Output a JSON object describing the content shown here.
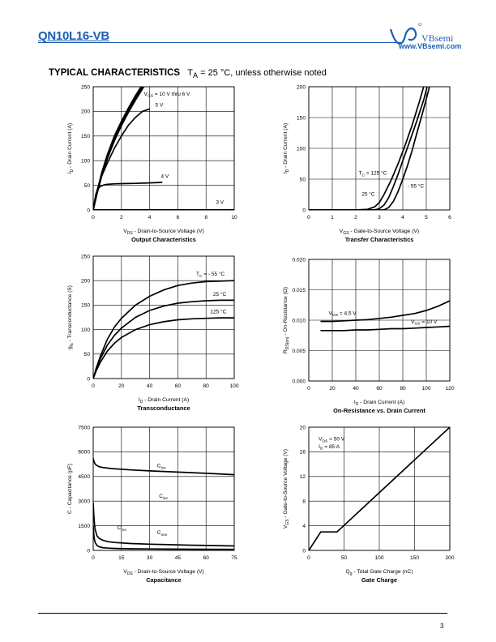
{
  "header": {
    "part_number": "QN10L16-VB",
    "logo_name": "VBsemi",
    "logo_url": "www.VBsemi.com",
    "section_title": "TYPICAL CHARACTERISTICS",
    "section_note_pre": "T",
    "section_note_sub": "A",
    "section_note_post": " = 25 °C, unless otherwise noted"
  },
  "footer": {
    "page_number": "3"
  },
  "colors": {
    "brand": "#1a5fb4",
    "curve": "#000000"
  },
  "chart_data": [
    {
      "id": "output",
      "type": "line",
      "title": "Output Characteristics",
      "xlabel": {
        "pre": "V",
        "sub": "DS",
        "post": " - Drain-to-Source Voltage (V)"
      },
      "ylabel": {
        "pre": "I",
        "sub": "D",
        "post": " - Drain Current (A)"
      },
      "xlim": [
        0,
        10
      ],
      "ylim": [
        0,
        250
      ],
      "xticks": [
        0,
        2,
        4,
        6,
        8,
        10
      ],
      "yticks": [
        0,
        50,
        100,
        150,
        200,
        250
      ],
      "ytick_labels": [
        "0",
        "50",
        "100",
        "150",
        "200",
        "250"
      ],
      "grid": true,
      "series": [
        {
          "x": [
            0,
            0.3,
            0.6,
            1,
            1.5,
            2,
            2.5,
            3,
            3.5,
            4
          ],
          "y": [
            0,
            40,
            75,
            112,
            150,
            180,
            207,
            232,
            255,
            280
          ]
        },
        {
          "x": [
            0,
            0.3,
            0.6,
            1,
            1.5,
            2,
            2.5,
            3,
            3.5,
            4
          ],
          "y": [
            0,
            38,
            72,
            108,
            145,
            176,
            202,
            228,
            250,
            275
          ]
        },
        {
          "x": [
            0,
            0.3,
            0.6,
            1,
            1.5,
            2,
            2.5,
            3,
            3.5,
            4
          ],
          "y": [
            0,
            36,
            68,
            104,
            140,
            171,
            198,
            223,
            246,
            270
          ]
        },
        {
          "x": [
            0,
            0.2,
            0.5,
            1,
            1.5,
            2,
            2.5,
            3,
            3.5,
            4
          ],
          "y": [
            0,
            32,
            62,
            95,
            125,
            150,
            172,
            188,
            200,
            205
          ]
        },
        {
          "x": [
            0,
            0.1,
            0.2,
            0.35,
            0.5,
            0.8,
            1,
            1.5,
            2,
            3,
            4,
            4.9
          ],
          "y": [
            0,
            18,
            33,
            43,
            48,
            51,
            52,
            53,
            53.5,
            54,
            55,
            56
          ]
        },
        {
          "x": [
            0,
            10
          ],
          "y": [
            0.3,
            0.3
          ]
        }
      ],
      "annotations": [
        {
          "x": 3.6,
          "y": 232,
          "pre": "V",
          "sub": "GS",
          "post": " = 10 V thru 6 V"
        },
        {
          "x": 4.4,
          "y": 210,
          "pre": "5 V"
        },
        {
          "x": 4.8,
          "y": 65,
          "pre": "4 V"
        },
        {
          "x": 8.7,
          "y": 12,
          "pre": "3 V"
        }
      ]
    },
    {
      "id": "transfer",
      "type": "line",
      "title": "Transfer Characteristics",
      "xlabel": {
        "pre": "V",
        "sub": "GS",
        "post": " - Gate-to-Source Voltage (V)"
      },
      "ylabel": {
        "pre": "I",
        "sub": "D",
        "post": " - Drain Current (A)"
      },
      "xlim": [
        0,
        6
      ],
      "ylim": [
        0,
        200
      ],
      "xticks": [
        0,
        1,
        2,
        3,
        4,
        5,
        6
      ],
      "yticks": [
        0,
        50,
        100,
        150,
        200
      ],
      "ytick_labels": [
        "0",
        "50",
        "100",
        "150",
        "200"
      ],
      "grid": true,
      "series": [
        {
          "x": [
            0,
            2.0,
            2.5,
            2.8,
            3.0,
            3.2,
            3.5,
            3.8,
            4.1,
            4.4,
            4.7,
            5.0
          ],
          "y": [
            0,
            0,
            1,
            5,
            12,
            25,
            48,
            75,
            105,
            138,
            175,
            215
          ]
        },
        {
          "x": [
            0,
            2.8,
            3.0,
            3.2,
            3.4,
            3.6,
            3.8,
            4.0,
            4.3,
            4.6,
            4.9,
            5.1
          ],
          "y": [
            0,
            0,
            2,
            8,
            20,
            38,
            58,
            80,
            112,
            145,
            180,
            210
          ]
        },
        {
          "x": [
            0,
            3.2,
            3.4,
            3.6,
            3.8,
            4.0,
            4.2,
            4.4,
            4.6,
            4.8,
            5.0,
            5.2
          ],
          "y": [
            0,
            0,
            4,
            14,
            30,
            50,
            72,
            97,
            125,
            152,
            180,
            210
          ]
        }
      ],
      "annotations": [
        {
          "x": 2.12,
          "y": 57,
          "pre": "T",
          "sub": "C",
          "post": " = 125 °C"
        },
        {
          "x": 2.25,
          "y": 23,
          "pre": "25 °C"
        },
        {
          "x": 4.2,
          "y": 36,
          "pre": "- 55 °C"
        }
      ]
    },
    {
      "id": "transconductance",
      "type": "line",
      "title": "Transconductance",
      "xlabel": {
        "pre": "I",
        "sub": "D",
        "post": " - Drain Current (A)"
      },
      "ylabel": {
        "pre": "g",
        "sub": "fs",
        "post": " - Transconductance (S)"
      },
      "xlim": [
        0,
        100
      ],
      "ylim": [
        0,
        250
      ],
      "xticks": [
        0,
        20,
        40,
        60,
        80,
        100
      ],
      "yticks": [
        0,
        50,
        100,
        150,
        200,
        250
      ],
      "ytick_labels": [
        "0",
        "50",
        "100",
        "150",
        "200",
        "250"
      ],
      "grid": true,
      "series": [
        {
          "x": [
            0,
            2,
            5,
            10,
            15,
            20,
            30,
            40,
            50,
            60,
            70,
            80,
            90,
            100
          ],
          "y": [
            0,
            20,
            45,
            80,
            105,
            123,
            150,
            168,
            181,
            190,
            195,
            198,
            199,
            200
          ]
        },
        {
          "x": [
            0,
            2,
            5,
            10,
            15,
            20,
            30,
            40,
            50,
            60,
            70,
            80,
            90,
            100
          ],
          "y": [
            0,
            18,
            40,
            68,
            88,
            103,
            125,
            139,
            148,
            154,
            157,
            159,
            160,
            160
          ]
        },
        {
          "x": [
            0,
            2,
            5,
            10,
            15,
            20,
            30,
            40,
            50,
            60,
            70,
            80,
            90,
            100
          ],
          "y": [
            0,
            15,
            33,
            56,
            72,
            84,
            100,
            110,
            116,
            120,
            122,
            123,
            124,
            124
          ]
        }
      ],
      "annotations": [
        {
          "x": 73,
          "y": 210,
          "pre": "T",
          "sub": "C",
          "post": " = - 55 °C"
        },
        {
          "x": 85,
          "y": 169,
          "pre": "25 °C"
        },
        {
          "x": 83,
          "y": 133,
          "pre": "125 °C"
        }
      ]
    },
    {
      "id": "on_resistance",
      "type": "line",
      "title": "On-Resistance vs. Drain Current",
      "xlabel": {
        "pre": "I",
        "sub": "D",
        "post": " - Drain Current (A)"
      },
      "ylabel": {
        "pre": "R",
        "sub": "DS(on)",
        "post": " - On-Resistance (Ω)"
      },
      "xlim": [
        0,
        120
      ],
      "ylim": [
        0,
        0.02
      ],
      "xticks": [
        0,
        20,
        40,
        60,
        80,
        100,
        120
      ],
      "yticks": [
        0,
        0.005,
        0.01,
        0.015,
        0.02
      ],
      "ytick_labels": [
        "0.000",
        "0.005",
        "0.010",
        "0.015",
        "0.020"
      ],
      "grid": true,
      "series": [
        {
          "x": [
            10,
            20,
            30,
            40,
            50,
            60,
            70,
            80,
            90,
            100,
            110,
            120
          ],
          "y": [
            0.0098,
            0.0098,
            0.0099,
            0.01,
            0.0101,
            0.0103,
            0.0105,
            0.0108,
            0.0111,
            0.0116,
            0.0123,
            0.0132
          ]
        },
        {
          "x": [
            10,
            20,
            30,
            40,
            50,
            60,
            70,
            80,
            90,
            100,
            110,
            120
          ],
          "y": [
            0.0083,
            0.0083,
            0.0083,
            0.0084,
            0.0084,
            0.0085,
            0.0086,
            0.0086,
            0.0087,
            0.0088,
            0.0089,
            0.009
          ]
        }
      ],
      "annotations": [
        {
          "x": 17,
          "y": 0.0109,
          "pre": "V",
          "sub": "GS",
          "post": " = 4.5 V"
        },
        {
          "x": 87,
          "y": 0.0095,
          "pre": "V",
          "sub": "GS",
          "post": " = 10 V"
        }
      ]
    },
    {
      "id": "capacitance",
      "type": "line",
      "title": "Capacitance",
      "xlabel": {
        "pre": "V",
        "sub": "DS",
        "post": " - Drain-to-Source Voltage (V)"
      },
      "ylabel": {
        "pre": "C - Capacitance (pF)"
      },
      "xlim": [
        0,
        75
      ],
      "ylim": [
        0,
        7500
      ],
      "xticks": [
        0,
        15,
        30,
        45,
        60,
        75
      ],
      "yticks": [
        0,
        1500,
        3000,
        4500,
        6000,
        7500
      ],
      "ytick_labels": [
        "0",
        "1500",
        "3000",
        "4500",
        "6000",
        "7500"
      ],
      "grid": true,
      "series": [
        {
          "x": [
            0,
            0.3,
            0.8,
            1.5,
            3,
            5,
            10,
            20,
            30,
            40,
            50,
            60,
            70,
            75
          ],
          "y": [
            5600,
            5450,
            5300,
            5200,
            5100,
            5050,
            4980,
            4900,
            4840,
            4790,
            4740,
            4690,
            4640,
            4610
          ]
        },
        {
          "x": [
            0,
            0.3,
            0.6,
            1,
            2,
            3,
            5,
            8,
            12,
            20,
            30,
            40,
            50,
            60,
            75
          ],
          "y": [
            2900,
            2200,
            1700,
            1300,
            900,
            750,
            620,
            530,
            480,
            420,
            380,
            350,
            320,
            300,
            270
          ]
        },
        {
          "x": [
            0,
            0.3,
            0.6,
            1,
            2,
            3,
            5,
            8,
            12,
            20,
            30,
            40,
            50,
            60,
            75
          ],
          "y": [
            1500,
            1000,
            700,
            500,
            300,
            230,
            170,
            140,
            120,
            100,
            90,
            80,
            75,
            70,
            65
          ]
        }
      ],
      "annotations": [
        {
          "x": 35,
          "y": 3200,
          "pre": "C",
          "sub": "iss",
          "post": ""
        },
        {
          "x": 34,
          "y": 5050,
          "pre": "C",
          "sub": "iss",
          "post": ""
        },
        {
          "x": 12.7,
          "y": 1280,
          "pre": "C",
          "sub": "rss",
          "post": ""
        },
        {
          "x": 34,
          "y": 980,
          "pre": "C",
          "sub": "oss",
          "post": ""
        }
      ]
    },
    {
      "id": "gate_charge",
      "type": "line",
      "title": "Gate Charge",
      "xlabel": {
        "pre": "Q",
        "sub": "g",
        "post": " - Total Gate Charge (nC)"
      },
      "ylabel": {
        "pre": "V",
        "sub": "GS",
        "post": " - Gate-to-Source Voltage (V)"
      },
      "xlim": [
        0,
        200
      ],
      "ylim": [
        0,
        20
      ],
      "xticks": [
        0,
        50,
        100,
        150,
        200
      ],
      "yticks": [
        0,
        4,
        8,
        12,
        16,
        20
      ],
      "ytick_labels": [
        "0",
        "4",
        "8",
        "12",
        "16",
        "20"
      ],
      "grid": true,
      "series": [
        {
          "x": [
            0,
            17,
            40,
            200
          ],
          "y": [
            0,
            3,
            3,
            20
          ]
        }
      ],
      "annotations": [
        {
          "x": 14,
          "y": 17.8,
          "pre": "V",
          "sub": "DS",
          "post": " = 50 V"
        },
        {
          "x": 14,
          "y": 16.6,
          "pre": "I",
          "sub": "D",
          "post": " = 85 A"
        }
      ]
    }
  ]
}
